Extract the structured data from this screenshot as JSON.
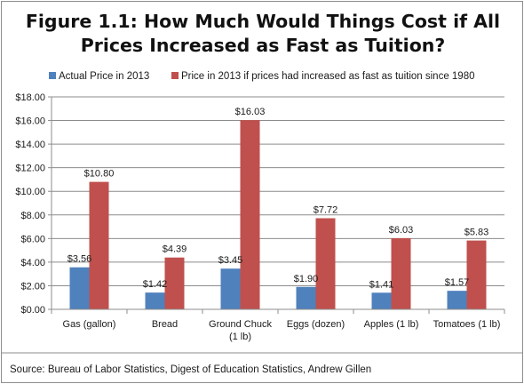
{
  "chart_data": {
    "type": "bar",
    "title_lines": [
      "Figure 1.1: How Much Would Things Cost if All",
      "Prices Increased as Fast as Tuition?"
    ],
    "categories": [
      [
        "Gas (gallon)"
      ],
      [
        "Bread"
      ],
      [
        "Ground Chuck",
        "(1 lb)"
      ],
      [
        "Eggs (dozen)"
      ],
      [
        "Apples (1 lb)"
      ],
      [
        "Tomatoes (1 lb)"
      ]
    ],
    "series": [
      {
        "name": "Actual Price in 2013",
        "color": "#4f81bd",
        "values": [
          3.56,
          1.42,
          3.45,
          1.9,
          1.41,
          1.57
        ],
        "labels": [
          "$3.56",
          "$1.42",
          "$3.45",
          "$1.90",
          "$1.41",
          "$1.57"
        ]
      },
      {
        "name": "Price in 2013 if prices had increased as fast as tuition since 1980",
        "color": "#c0504d",
        "values": [
          10.8,
          4.39,
          16.03,
          7.72,
          6.03,
          5.83
        ],
        "labels": [
          "$10.80",
          "$4.39",
          "$16.03",
          "$7.72",
          "$6.03",
          "$5.83"
        ]
      }
    ],
    "yticks": [
      0,
      2,
      4,
      6,
      8,
      10,
      12,
      14,
      16,
      18
    ],
    "ytick_labels": [
      "$0.00",
      "$2.00",
      "$4.00",
      "$6.00",
      "$8.00",
      "$10.00",
      "$12.00",
      "$14.00",
      "$16.00",
      "$18.00"
    ],
    "ylim": [
      0,
      18
    ],
    "grid": true,
    "legend_position": "top",
    "source": "Source: Bureau of Labor Statistics, Digest of Education Statistics, Andrew Gillen"
  }
}
